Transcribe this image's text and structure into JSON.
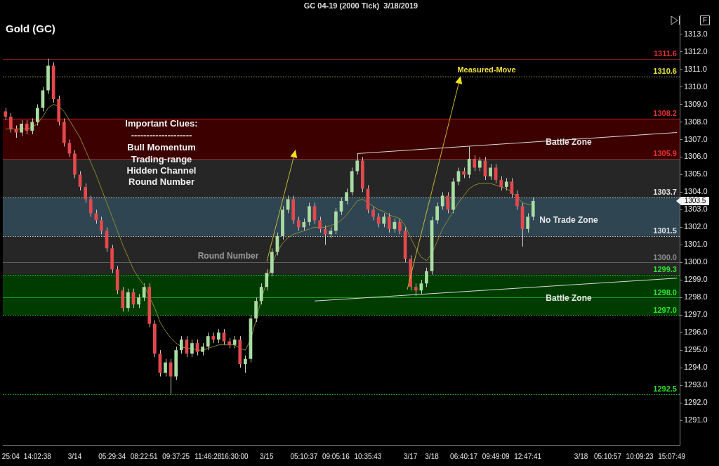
{
  "chart_data": {
    "type": "candlestick",
    "title": "GC 04-19 (2000 Tick)  3/18/2019",
    "subtitle": "Gold (GC)",
    "categories": [
      null,
      "25:04",
      null,
      null,
      null,
      null,
      "14:02:38",
      null,
      null,
      null,
      null,
      null,
      null,
      "3/14",
      null,
      null,
      null,
      null,
      null,
      null,
      "05:29:34",
      null,
      null,
      null,
      null,
      null,
      "08:22:51",
      null,
      null,
      null,
      null,
      null,
      "09:37:25",
      null,
      null,
      null,
      null,
      null,
      "11:46:28",
      null,
      null,
      null,
      null,
      "16:30:00",
      null,
      null,
      null,
      null,
      null,
      "3/15",
      null,
      null,
      null,
      null,
      null,
      null,
      "05:10:37",
      null,
      null,
      null,
      null,
      null,
      "09:05:16",
      null,
      null,
      null,
      null,
      null,
      "10:35:43",
      null,
      null,
      null,
      null,
      null,
      null,
      null,
      "3/17",
      null,
      null,
      null,
      "3/18",
      null,
      null,
      null,
      null,
      null,
      "06:40:17",
      null,
      null,
      null,
      null,
      null,
      "09:49:09",
      null,
      null,
      null,
      null,
      null,
      "12:47:41",
      null,
      null,
      null,
      null,
      null,
      null,
      null,
      null,
      null,
      "3/18",
      null,
      null,
      null,
      null,
      "05:10:57",
      null,
      null,
      null,
      null,
      null,
      "10:09:23",
      null,
      null,
      null,
      null,
      null,
      "15:07:49",
      null
    ],
    "ohlc": [
      [
        1308.6,
        1308.8,
        1308.1,
        1308.3
      ],
      [
        1308.3,
        1308.5,
        1307.4,
        1307.6
      ],
      [
        1307.6,
        1307.8,
        1307.1,
        1307.4
      ],
      [
        1307.4,
        1308.1,
        1307.2,
        1307.9
      ],
      [
        1307.9,
        1308.1,
        1307.3,
        1307.5
      ],
      [
        1307.5,
        1308.2,
        1307.3,
        1308.0
      ],
      [
        1308.0,
        1309.0,
        1307.8,
        1308.8
      ],
      [
        1308.8,
        1310.0,
        1308.6,
        1309.8
      ],
      [
        1309.8,
        1311.6,
        1309.6,
        1311.2
      ],
      [
        1311.2,
        1311.4,
        1309.1,
        1309.3
      ],
      [
        1309.3,
        1309.5,
        1307.8,
        1308.0
      ],
      [
        1308.0,
        1308.2,
        1306.6,
        1306.8
      ],
      [
        1306.8,
        1307.0,
        1306.0,
        1306.2
      ],
      [
        1306.2,
        1306.4,
        1304.8,
        1305.0
      ],
      [
        1305.0,
        1305.2,
        1304.1,
        1304.3
      ],
      [
        1304.3,
        1304.5,
        1303.4,
        1303.6
      ],
      [
        1303.6,
        1303.8,
        1302.6,
        1302.8
      ],
      [
        1302.8,
        1303.0,
        1302.2,
        1302.4
      ],
      [
        1302.4,
        1302.6,
        1301.6,
        1301.8
      ],
      [
        1301.8,
        1302.0,
        1300.6,
        1300.8
      ],
      [
        1300.8,
        1301.0,
        1299.4,
        1299.6
      ],
      [
        1299.6,
        1299.8,
        1298.2,
        1298.4
      ],
      [
        1298.4,
        1298.6,
        1297.2,
        1297.4
      ],
      [
        1297.4,
        1298.5,
        1297.2,
        1298.3
      ],
      [
        1298.3,
        1298.5,
        1297.4,
        1297.6
      ],
      [
        1297.6,
        1298.2,
        1297.4,
        1298.0
      ],
      [
        1298.0,
        1298.8,
        1297.8,
        1298.6
      ],
      [
        1298.6,
        1298.8,
        1296.3,
        1296.5
      ],
      [
        1296.5,
        1296.7,
        1294.6,
        1294.8
      ],
      [
        1294.8,
        1295.0,
        1293.5,
        1293.7
      ],
      [
        1293.7,
        1294.5,
        1293.5,
        1294.3
      ],
      [
        1294.3,
        1294.5,
        1292.5,
        1293.5
      ],
      [
        1293.5,
        1295.2,
        1293.3,
        1295.0
      ],
      [
        1295.0,
        1295.8,
        1294.8,
        1295.6
      ],
      [
        1295.6,
        1295.8,
        1294.6,
        1294.8
      ],
      [
        1294.8,
        1295.6,
        1294.6,
        1295.4
      ],
      [
        1295.4,
        1295.6,
        1294.7,
        1294.9
      ],
      [
        1294.9,
        1295.4,
        1294.7,
        1295.2
      ],
      [
        1295.2,
        1296.0,
        1295.0,
        1295.8
      ],
      [
        1295.8,
        1296.0,
        1295.4,
        1295.6
      ],
      [
        1295.6,
        1296.2,
        1295.4,
        1296.0
      ],
      [
        1296.0,
        1296.2,
        1295.3,
        1295.5
      ],
      [
        1295.5,
        1295.7,
        1295.1,
        1295.3
      ],
      [
        1295.3,
        1295.8,
        1295.1,
        1295.6
      ],
      [
        1295.6,
        1295.8,
        1294.0,
        1294.2
      ],
      [
        1294.2,
        1294.7,
        1293.7,
        1294.5
      ],
      [
        1294.5,
        1297.0,
        1294.3,
        1296.8
      ],
      [
        1296.8,
        1298.0,
        1296.6,
        1297.8
      ],
      [
        1297.8,
        1298.8,
        1297.6,
        1298.6
      ],
      [
        1298.6,
        1299.6,
        1298.4,
        1299.4
      ],
      [
        1299.4,
        1300.8,
        1299.2,
        1300.6
      ],
      [
        1300.6,
        1301.7,
        1300.4,
        1301.5
      ],
      [
        1301.5,
        1303.2,
        1301.3,
        1303.0
      ],
      [
        1303.0,
        1303.8,
        1302.8,
        1303.6
      ],
      [
        1303.6,
        1303.8,
        1302.2,
        1302.4
      ],
      [
        1302.4,
        1302.6,
        1301.8,
        1302.0
      ],
      [
        1302.0,
        1302.5,
        1301.8,
        1302.3
      ],
      [
        1302.3,
        1303.4,
        1302.1,
        1303.2
      ],
      [
        1303.2,
        1303.4,
        1302.2,
        1302.4
      ],
      [
        1302.4,
        1302.6,
        1301.7,
        1301.9
      ],
      [
        1301.9,
        1302.1,
        1301.0,
        1301.6
      ],
      [
        1301.6,
        1302.0,
        1301.4,
        1301.8
      ],
      [
        1301.8,
        1303.1,
        1301.6,
        1302.9
      ],
      [
        1302.9,
        1303.7,
        1302.7,
        1303.5
      ],
      [
        1303.5,
        1304.2,
        1303.3,
        1304.0
      ],
      [
        1304.0,
        1305.4,
        1303.8,
        1305.2
      ],
      [
        1305.2,
        1306.2,
        1305.0,
        1305.8
      ],
      [
        1305.8,
        1306.0,
        1304.0,
        1304.2
      ],
      [
        1304.2,
        1304.4,
        1302.8,
        1303.0
      ],
      [
        1303.0,
        1303.2,
        1302.4,
        1302.6
      ],
      [
        1302.6,
        1302.8,
        1302.0,
        1302.2
      ],
      [
        1302.2,
        1302.8,
        1302.0,
        1302.6
      ],
      [
        1302.6,
        1302.8,
        1301.7,
        1301.9
      ],
      [
        1301.9,
        1302.5,
        1301.7,
        1302.3
      ],
      [
        1302.3,
        1302.5,
        1301.6,
        1301.8
      ],
      [
        1301.8,
        1302.0,
        1300.0,
        1300.2
      ],
      [
        1300.2,
        1300.4,
        1298.4,
        1298.6
      ],
      [
        1298.6,
        1298.8,
        1298.1,
        1298.4
      ],
      [
        1298.4,
        1299.0,
        1298.2,
        1298.8
      ],
      [
        1298.8,
        1299.7,
        1298.6,
        1299.5
      ],
      [
        1299.5,
        1302.6,
        1299.3,
        1302.4
      ],
      [
        1302.4,
        1303.4,
        1302.2,
        1303.2
      ],
      [
        1303.2,
        1304.0,
        1303.0,
        1303.8
      ],
      [
        1303.8,
        1304.0,
        1302.8,
        1303.0
      ],
      [
        1303.0,
        1304.8,
        1302.8,
        1304.6
      ],
      [
        1304.6,
        1305.4,
        1304.4,
        1305.2
      ],
      [
        1305.2,
        1305.4,
        1304.8,
        1305.0
      ],
      [
        1305.0,
        1306.6,
        1304.8,
        1305.9
      ],
      [
        1305.9,
        1306.1,
        1305.2,
        1305.4
      ],
      [
        1305.4,
        1306.0,
        1305.2,
        1305.8
      ],
      [
        1305.8,
        1306.0,
        1304.7,
        1304.9
      ],
      [
        1304.9,
        1305.6,
        1304.7,
        1305.4
      ],
      [
        1305.4,
        1305.6,
        1304.5,
        1304.7
      ],
      [
        1304.7,
        1304.9,
        1304.1,
        1304.3
      ],
      [
        1304.3,
        1304.8,
        1304.1,
        1304.6
      ],
      [
        1304.6,
        1304.8,
        1303.7,
        1303.9
      ],
      [
        1303.9,
        1304.1,
        1303.0,
        1303.2
      ],
      [
        1303.2,
        1303.4,
        1300.9,
        1301.9
      ],
      [
        1301.9,
        1302.8,
        1301.7,
        1302.6
      ],
      [
        1302.6,
        1303.7,
        1302.4,
        1303.5
      ],
      null,
      null,
      null,
      null,
      null,
      null,
      null,
      null,
      null,
      null,
      null,
      null,
      null,
      null,
      null,
      null,
      null,
      null,
      null,
      null,
      null,
      null,
      null,
      null,
      null,
      null,
      null
    ],
    "series": [
      {
        "type": "line",
        "color": "#8c8a2e",
        "values": [
          1307.6,
          1307.6,
          1307.6,
          1307.6,
          1307.6,
          1307.7,
          1307.9,
          1308.3,
          1308.8,
          1309.0,
          1308.9,
          1308.6,
          1308.1,
          1307.6,
          1307.1,
          1306.4,
          1305.7,
          1305.0,
          1304.2,
          1303.4,
          1302.6,
          1301.8,
          1301.0,
          1300.3,
          1299.6,
          1299.1,
          1298.7,
          null,
          1297.4,
          1296.6,
          1296.1,
          1295.7,
          1295.4,
          1295.2,
          1295.1,
          1295.1,
          1295.0,
          1295.0,
          1295.1,
          1295.2,
          1295.3,
          1295.3,
          1295.3,
          1295.3,
          1295.1,
          1295.0,
          1295.6,
          1296.7,
          1297.9,
          1298.9,
          1299.9,
          1300.6,
          1301.1,
          1301.4,
          1301.6,
          1301.7,
          1301.8,
          1301.9,
          1302.0,
          1302.0,
          1302.0,
          1302.1,
          1302.2,
          1302.4,
          1302.7,
          1303.1,
          1303.5,
          1303.6,
          1303.4,
          1303.2,
          1303.0,
          1302.9,
          1302.7,
          1302.6,
          1302.5,
          1302.1,
          1301.4,
          1300.8,
          1300.3,
          1300.1,
          1300.5,
          1301.2,
          1301.9,
          1302.4,
          1302.9,
          1303.4,
          1303.8,
          1304.2,
          1304.4,
          1304.5,
          1304.5,
          1304.5,
          1304.4,
          1304.3,
          1304.2,
          1304.0,
          1303.7,
          1303.4,
          1303.3,
          1303.3,
          null,
          null,
          null,
          null,
          null,
          null,
          null,
          null,
          null,
          null,
          null,
          null,
          null,
          null,
          null,
          null,
          null,
          null,
          null,
          null,
          null,
          null,
          null,
          null,
          null,
          null,
          null
        ]
      },
      {
        "type": "line",
        "color": "#d8d8d8",
        "values": [
          null,
          null,
          null,
          null,
          null,
          null,
          null,
          null,
          null,
          null,
          null,
          null,
          null,
          null,
          null,
          null,
          null,
          null,
          null,
          null,
          null,
          null,
          null,
          null,
          null,
          null,
          null,
          null,
          null,
          null,
          null,
          null,
          null,
          null,
          null,
          null,
          null,
          null,
          null,
          null,
          null,
          null,
          null,
          null,
          null,
          null,
          null,
          null,
          null,
          null,
          null,
          null,
          null,
          null,
          null,
          null,
          null,
          null,
          null,
          null,
          null,
          null,
          null,
          null,
          null,
          null,
          1306.2,
          null,
          null,
          null,
          null,
          null,
          null,
          null,
          null,
          null,
          null,
          null,
          null,
          null,
          null,
          null,
          null,
          null,
          null,
          null,
          null,
          null,
          null,
          null,
          null,
          null,
          null,
          null,
          null,
          null,
          null,
          null,
          null,
          null,
          null,
          null,
          null,
          null,
          null,
          null,
          null,
          null,
          null,
          null,
          null,
          null,
          null,
          null,
          null,
          null,
          null,
          null,
          null,
          null,
          null,
          null,
          null,
          null,
          null,
          null,
          1307.4
        ]
      },
      {
        "type": "line",
        "color": "#d8d8d8",
        "values": [
          null,
          null,
          null,
          null,
          null,
          null,
          null,
          null,
          null,
          null,
          null,
          null,
          null,
          null,
          null,
          null,
          null,
          null,
          null,
          null,
          null,
          null,
          null,
          null,
          null,
          null,
          null,
          null,
          null,
          null,
          null,
          null,
          null,
          null,
          null,
          null,
          null,
          null,
          null,
          null,
          null,
          null,
          null,
          null,
          null,
          null,
          null,
          null,
          null,
          null,
          null,
          null,
          null,
          null,
          null,
          null,
          null,
          null,
          1297.8,
          null,
          null,
          null,
          null,
          null,
          null,
          null,
          null,
          null,
          null,
          null,
          null,
          null,
          null,
          null,
          null,
          null,
          null,
          null,
          null,
          null,
          null,
          null,
          null,
          null,
          null,
          null,
          null,
          null,
          null,
          null,
          null,
          null,
          null,
          null,
          null,
          null,
          null,
          null,
          null,
          null,
          null,
          null,
          null,
          null,
          null,
          null,
          null,
          null,
          null,
          null,
          null,
          null,
          null,
          null,
          null,
          null,
          null,
          null,
          null,
          null,
          null,
          null,
          null,
          null,
          null,
          null,
          1299.1
        ]
      }
    ],
    "ylim": [
      1289.6,
      1314.1
    ],
    "yticks": [
      {
        "value": 1291,
        "label": "1291.0"
      },
      {
        "value": 1292,
        "label": "1292.0"
      },
      {
        "value": 1293,
        "label": "1293.0"
      },
      {
        "value": 1294,
        "label": "1294.0"
      },
      {
        "value": 1295,
        "label": "1295.0"
      },
      {
        "value": 1296,
        "label": "1296.0"
      },
      {
        "value": 1297,
        "label": "1297.0"
      },
      {
        "value": 1298,
        "label": "1298.0"
      },
      {
        "value": 1299,
        "label": "1299.0"
      },
      {
        "value": 1300,
        "label": "1300.0"
      },
      {
        "value": 1301,
        "label": "1301.0"
      },
      {
        "value": 1302,
        "label": "1302.0"
      },
      {
        "value": 1303,
        "label": "1303.0"
      },
      {
        "value": 1304,
        "label": "1304.0"
      },
      {
        "value": 1305,
        "label": "1305.0"
      },
      {
        "value": 1306,
        "label": "1306.0"
      },
      {
        "value": 1307,
        "label": "1307.0"
      },
      {
        "value": 1308,
        "label": "1308.0"
      },
      {
        "value": 1309,
        "label": "1309.0"
      },
      {
        "value": 1310,
        "label": "1310.0"
      },
      {
        "value": 1311,
        "label": "1311.0"
      },
      {
        "value": 1312,
        "label": "1312.0"
      },
      {
        "value": 1313,
        "label": "1313.0"
      }
    ],
    "bands": [
      {
        "axis": "y",
        "from": 1299.3,
        "to": 1305.9,
        "color": "#262626"
      },
      {
        "axis": "y",
        "from": 1305.9,
        "to": 1308.2,
        "color": "#3c0000",
        "label": "Battle Zone"
      },
      {
        "axis": "y",
        "from": 1301.5,
        "to": 1303.7,
        "color": "#2f4552",
        "label": "No Trade Zone"
      },
      {
        "axis": "y",
        "from": 1297.0,
        "to": 1299.3,
        "color": "#003c00",
        "label": "Battle Zone"
      }
    ],
    "ref_lines": [
      {
        "axis": "y",
        "value": 1311.6,
        "label": "1311.6",
        "color": "#e83030",
        "line_style": "solid"
      },
      {
        "axis": "y",
        "value": 1310.6,
        "label": "1310.6",
        "color": "#e0e040",
        "line_style": "dotted"
      },
      {
        "axis": "y",
        "value": 1308.2,
        "label": "1308.2",
        "color": "#e83030",
        "line_style": "solid"
      },
      {
        "axis": "y",
        "value": 1305.9,
        "label": "1305.9",
        "color": "#e83030",
        "line_style": "solid"
      },
      {
        "axis": "y",
        "value": 1303.7,
        "label": "1303.7",
        "color": "#e0e0e0",
        "line_style": "dotted"
      },
      {
        "axis": "y",
        "value": 1301.5,
        "label": "1301.5",
        "color": "#e0e0e0",
        "line_style": "dotted"
      },
      {
        "axis": "y",
        "value": 1300.0,
        "label": "1300.0",
        "color": "#8a8a8a",
        "line_style": "solid"
      },
      {
        "axis": "y",
        "value": 1299.3,
        "label": "1299.3",
        "color": "#30e030",
        "line_style": "dotted"
      },
      {
        "axis": "y",
        "value": 1298.0,
        "label": "1298.0",
        "color": "#30e030",
        "line_style": "solid"
      },
      {
        "axis": "y",
        "value": 1297.0,
        "label": "1297.0",
        "color": "#30e030",
        "line_style": "dotted"
      },
      {
        "axis": "y",
        "value": 1292.5,
        "label": "1292.5",
        "color": "#30e030",
        "line_style": "dotted"
      }
    ],
    "annotations": [
      "Important Clues:",
      "--------------------",
      "Bull Momentum",
      "Trading-range",
      "Hidden Channel",
      "Round Number",
      {
        "text": "Round Number",
        "y": 1300.0
      },
      {
        "text": "Measured-Move",
        "y": 1310.6
      },
      "F",
      "1303.5"
    ]
  }
}
